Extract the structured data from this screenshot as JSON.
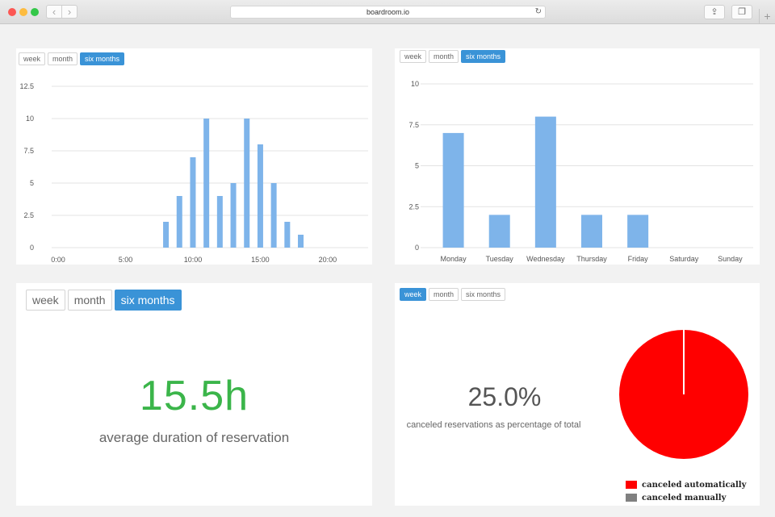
{
  "browser": {
    "url": "boardroom.io",
    "back_glyph": "‹",
    "forward_glyph": "›",
    "reload_glyph": "↻",
    "share_glyph": "⇪",
    "tabs_glyph": "❐",
    "newtab_glyph": "+"
  },
  "colors": {
    "bar": "#7eb4ea",
    "active_button": "#3a93d7",
    "success": "#3bb54a",
    "pie_auto": "#ff0000",
    "pie_manual": "#808080"
  },
  "panels": {
    "hourly": {
      "buttons": [
        {
          "label": "week",
          "active": false
        },
        {
          "label": "month",
          "active": false
        },
        {
          "label": "six months",
          "active": true
        }
      ]
    },
    "weekday": {
      "buttons": [
        {
          "label": "week",
          "active": false
        },
        {
          "label": "month",
          "active": false
        },
        {
          "label": "six months",
          "active": true
        }
      ]
    },
    "duration": {
      "buttons": [
        {
          "label": "week",
          "active": false
        },
        {
          "label": "month",
          "active": false
        },
        {
          "label": "six months",
          "active": true
        }
      ],
      "value": "15.5h",
      "label": "average duration of reservation"
    },
    "canceled": {
      "buttons": [
        {
          "label": "week",
          "active": true
        },
        {
          "label": "month",
          "active": false
        },
        {
          "label": "six months",
          "active": false
        }
      ],
      "value": "25.0%",
      "label": "canceled reservations as percentage of total",
      "legend": [
        {
          "label": "canceled automatically",
          "color": "#ff0000"
        },
        {
          "label": "canceled manually",
          "color": "#808080"
        }
      ]
    }
  },
  "chart_data": [
    {
      "type": "bar",
      "x": [
        8,
        9,
        10,
        11,
        12,
        13,
        14,
        15,
        16,
        17,
        18
      ],
      "values": [
        2,
        4,
        7,
        10,
        4,
        5,
        10,
        8,
        5,
        2,
        1
      ],
      "xlim": [
        0,
        23
      ],
      "xticks": [
        "0:00",
        "5:00",
        "10:00",
        "15:00",
        "20:00"
      ],
      "xtick_values": [
        0,
        5,
        10,
        15,
        20
      ],
      "ylim": [
        0,
        12.5
      ],
      "yticks": [
        "0",
        "2.5",
        "5",
        "7.5",
        "10",
        "12.5"
      ],
      "grid": true
    },
    {
      "type": "bar",
      "categories": [
        "Monday",
        "Tuesday",
        "Wednesday",
        "Thursday",
        "Friday",
        "Saturday",
        "Sunday"
      ],
      "values": [
        7,
        2,
        8,
        2,
        2,
        0,
        0
      ],
      "ylim": [
        0,
        10
      ],
      "yticks": [
        "0",
        "2.5",
        "5",
        "7.5",
        "10"
      ],
      "grid": true
    },
    {
      "type": "pie",
      "labels": [
        "canceled automatically",
        "canceled manually"
      ],
      "values": [
        100,
        0
      ],
      "colors": [
        "#ff0000",
        "#808080"
      ]
    }
  ]
}
